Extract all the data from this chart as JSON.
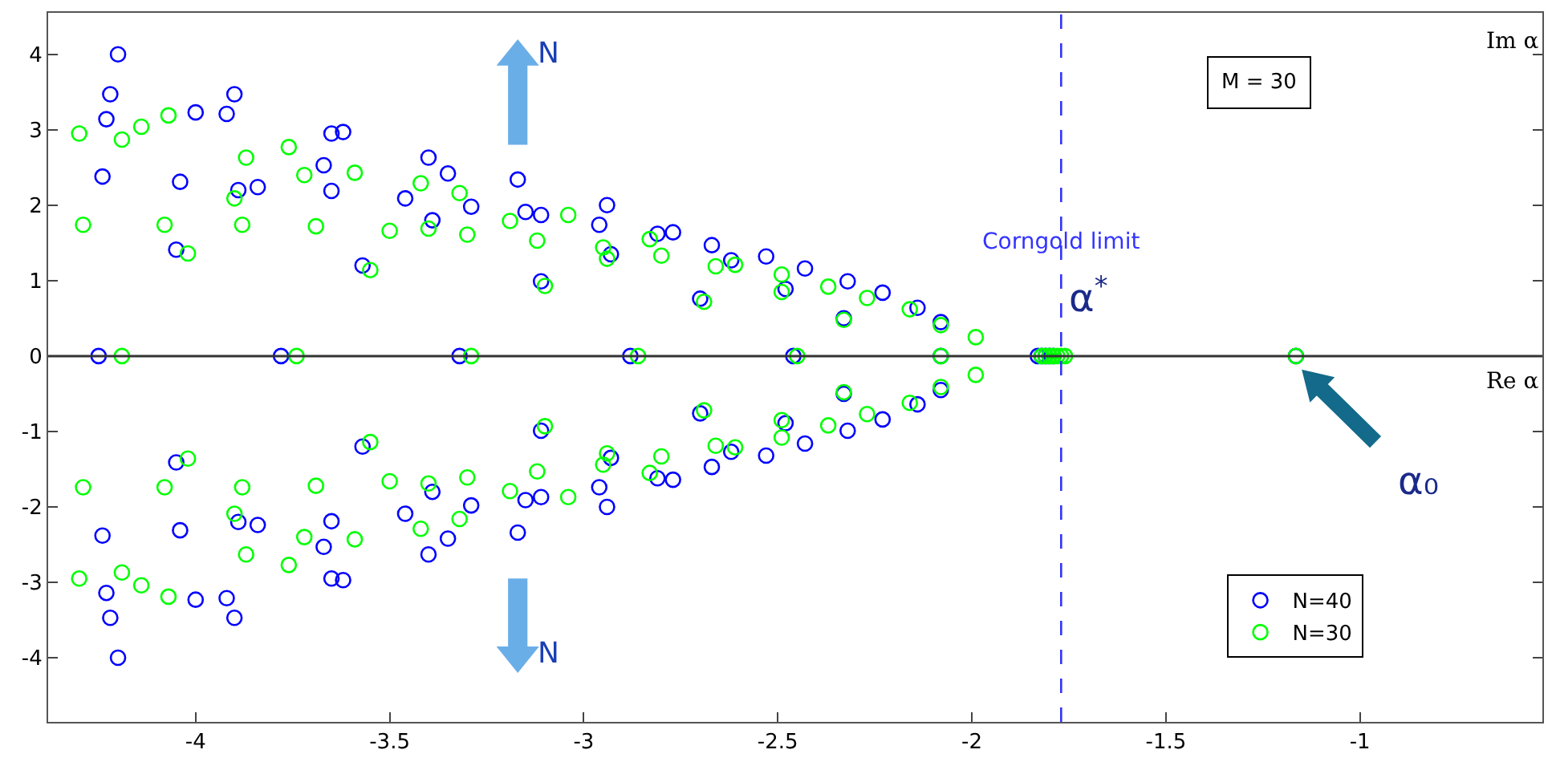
{
  "chart_data": {
    "type": "scatter",
    "xlabel": "Re α",
    "ylabel": "Im α",
    "xlim": [
      -4.38,
      -0.53
    ],
    "ylim": [
      -4.85,
      4.55
    ],
    "xticks": [
      -4,
      -3.5,
      -3,
      -2.5,
      -2,
      -1.5,
      -1
    ],
    "yticks": [
      -4,
      -3,
      -2,
      -1,
      0,
      1,
      2,
      3,
      4
    ],
    "legend": "bottom right",
    "marker": "circle",
    "ref_lines": [
      {
        "axis": "y",
        "value": 0,
        "color": "#333333",
        "line_style": "solid"
      },
      {
        "axis": "x",
        "value": -1.77,
        "label": "Corngold limit",
        "color": "#3333ff",
        "line_style": "dashed"
      }
    ],
    "annotations": [
      "M = 30",
      "N",
      "N",
      "α$^{*}$",
      "α₀"
    ],
    "series": [
      {
        "name": "N=40",
        "color": "#0000ff",
        "x": [
          -4.2,
          -4.22,
          -4.23,
          -4.24,
          -4.04,
          -4.0,
          -3.92,
          -3.9,
          -4.05,
          -3.89,
          -3.84,
          -3.65,
          -3.62,
          -3.67,
          -3.65,
          -3.57,
          -3.46,
          -3.4,
          -3.35,
          -3.29,
          -3.39,
          -3.17,
          -3.15,
          -3.11,
          -2.94,
          -2.96,
          -2.93,
          -3.11,
          -2.81,
          -2.77,
          -2.67,
          -2.62,
          -2.7,
          -2.53,
          -2.43,
          -2.48,
          -2.32,
          -2.23,
          -2.14,
          -2.33,
          -2.08,
          -4.2,
          -4.22,
          -4.23,
          -4.24,
          -4.04,
          -4.0,
          -3.92,
          -3.9,
          -4.05,
          -3.89,
          -3.84,
          -3.65,
          -3.62,
          -3.67,
          -3.65,
          -3.57,
          -3.46,
          -3.4,
          -3.35,
          -3.29,
          -3.39,
          -3.17,
          -3.15,
          -3.11,
          -2.94,
          -2.96,
          -2.93,
          -3.11,
          -2.81,
          -2.77,
          -2.67,
          -2.62,
          -2.7,
          -2.53,
          -2.43,
          -2.48,
          -2.32,
          -2.23,
          -2.14,
          -2.33,
          -2.08,
          -4.25,
          -3.78,
          -3.32,
          -2.88,
          -2.46,
          -2.08,
          -1.83,
          -1.82,
          -1.81,
          -1.8,
          -1.79,
          -1.165
        ],
        "values": [
          4.0,
          3.47,
          3.14,
          2.38,
          2.31,
          3.23,
          3.21,
          3.47,
          1.41,
          2.2,
          2.24,
          2.95,
          2.97,
          2.53,
          2.19,
          1.2,
          2.09,
          2.63,
          2.42,
          1.98,
          1.8,
          2.34,
          1.91,
          1.87,
          2.0,
          1.74,
          1.35,
          0.99,
          1.62,
          1.64,
          1.47,
          1.27,
          0.76,
          1.32,
          1.16,
          0.89,
          0.99,
          0.84,
          0.64,
          0.5,
          0.45,
          -4.0,
          -3.47,
          -3.14,
          -2.38,
          -2.31,
          -3.23,
          -3.21,
          -3.47,
          -1.41,
          -2.2,
          -2.24,
          -2.95,
          -2.97,
          -2.53,
          -2.19,
          -1.2,
          -2.09,
          -2.63,
          -2.42,
          -1.98,
          -1.8,
          -2.34,
          -1.91,
          -1.87,
          -2.0,
          -1.74,
          -1.35,
          -0.99,
          -1.62,
          -1.64,
          -1.47,
          -1.27,
          -0.76,
          -1.32,
          -1.16,
          -0.89,
          -0.99,
          -0.84,
          -0.64,
          -0.5,
          -0.45,
          0,
          0,
          0,
          0,
          0,
          0,
          0,
          0,
          0,
          0,
          0,
          0
        ]
      },
      {
        "name": "N=30",
        "color": "#00ff00",
        "x": [
          -4.3,
          -4.19,
          -4.14,
          -4.07,
          -4.29,
          -4.08,
          -4.02,
          -3.87,
          -3.9,
          -3.88,
          -3.76,
          -3.72,
          -3.59,
          -3.69,
          -3.55,
          -3.5,
          -3.42,
          -3.32,
          -3.4,
          -3.3,
          -3.19,
          -3.12,
          -3.04,
          -2.95,
          -2.94,
          -3.1,
          -2.83,
          -2.8,
          -2.66,
          -2.61,
          -2.69,
          -2.49,
          -2.49,
          -2.37,
          -2.27,
          -2.16,
          -2.33,
          -2.08,
          -1.99,
          -4.3,
          -4.19,
          -4.14,
          -4.07,
          -4.29,
          -4.08,
          -4.02,
          -3.87,
          -3.9,
          -3.88,
          -3.76,
          -3.72,
          -3.59,
          -3.69,
          -3.55,
          -3.5,
          -3.42,
          -3.32,
          -3.4,
          -3.3,
          -3.19,
          -3.12,
          -3.04,
          -2.95,
          -2.94,
          -3.1,
          -2.83,
          -2.8,
          -2.66,
          -2.61,
          -2.69,
          -2.49,
          -2.49,
          -2.37,
          -2.27,
          -2.16,
          -2.33,
          -2.08,
          -1.99,
          -4.19,
          -3.74,
          -3.29,
          -2.86,
          -2.45,
          -2.08,
          -1.82,
          -1.81,
          -1.8,
          -1.79,
          -1.78,
          -1.77,
          -1.76,
          -1.165
        ],
        "values": [
          2.95,
          2.87,
          3.04,
          3.19,
          1.74,
          1.74,
          1.36,
          2.63,
          2.09,
          1.74,
          2.77,
          2.4,
          2.43,
          1.72,
          1.14,
          1.66,
          2.29,
          2.16,
          1.69,
          1.61,
          1.79,
          1.53,
          1.87,
          1.44,
          1.29,
          0.93,
          1.55,
          1.33,
          1.19,
          1.21,
          0.72,
          1.08,
          0.85,
          0.92,
          0.77,
          0.62,
          0.48,
          0.41,
          0.25,
          -2.95,
          -2.87,
          -3.04,
          -3.19,
          -1.74,
          -1.74,
          -1.36,
          -2.63,
          -2.09,
          -1.74,
          -2.77,
          -2.4,
          -2.43,
          -1.72,
          -1.14,
          -1.66,
          -2.29,
          -2.16,
          -1.69,
          -1.61,
          -1.79,
          -1.53,
          -1.87,
          -1.44,
          -1.29,
          -0.93,
          -1.55,
          -1.33,
          -1.19,
          -1.21,
          -0.72,
          -1.08,
          -0.85,
          -0.92,
          -0.77,
          -0.62,
          -0.48,
          -0.41,
          -0.25,
          0,
          0,
          0,
          0,
          0,
          0,
          0,
          0,
          0,
          0,
          0,
          0,
          0,
          0
        ]
      }
    ]
  }
}
